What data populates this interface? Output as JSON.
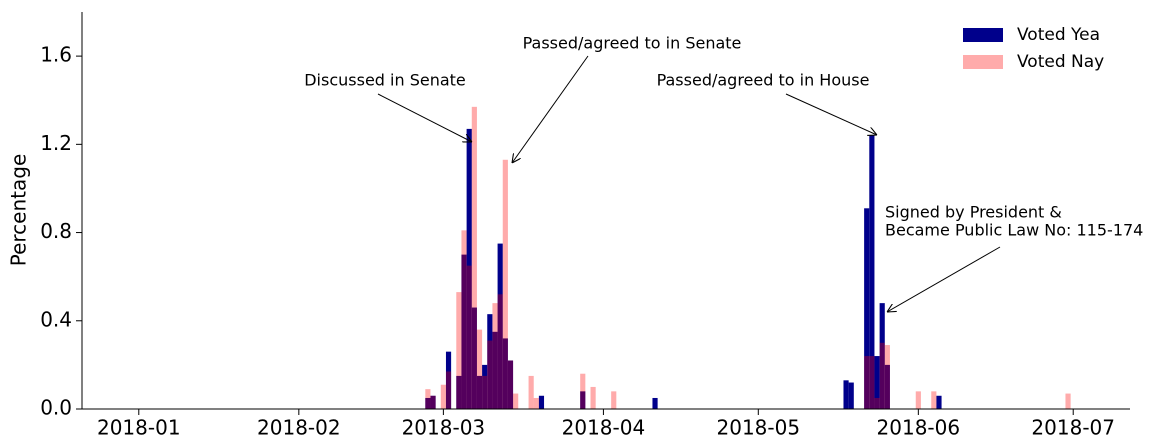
{
  "chart_data": {
    "type": "bar",
    "ylabel": "Percentage",
    "x": [
      "2018-02-26",
      "2018-02-27",
      "2018-03-01",
      "2018-03-02",
      "2018-03-04",
      "2018-03-05",
      "2018-03-06",
      "2018-03-07",
      "2018-03-08",
      "2018-03-09",
      "2018-03-10",
      "2018-03-11",
      "2018-03-12",
      "2018-03-13",
      "2018-03-14",
      "2018-03-15",
      "2018-03-18",
      "2018-03-19",
      "2018-03-20",
      "2018-03-28",
      "2018-03-30",
      "2018-04-03",
      "2018-04-11",
      "2018-05-18",
      "2018-05-19",
      "2018-05-22",
      "2018-05-23",
      "2018-05-24",
      "2018-05-25",
      "2018-05-26",
      "2018-06-01",
      "2018-06-04",
      "2018-06-05",
      "2018-06-30"
    ],
    "series": [
      {
        "name": "Voted Yea",
        "color": "#00008b",
        "alpha": 1,
        "values": [
          0.05,
          0.06,
          null,
          0.26,
          0.15,
          0.7,
          1.27,
          0.46,
          0.15,
          0.2,
          0.43,
          0.35,
          0.75,
          0.32,
          0.22,
          null,
          null,
          null,
          0.06,
          0.08,
          null,
          null,
          0.05,
          0.13,
          0.12,
          0.91,
          1.24,
          0.24,
          0.48,
          0.2,
          null,
          null,
          0.06,
          null
        ]
      },
      {
        "name": "Voted Nay",
        "color": "#ff0000",
        "alpha": 0.33,
        "values": [
          0.09,
          0.06,
          0.11,
          0.17,
          0.53,
          0.81,
          0.65,
          1.37,
          0.36,
          0.15,
          0.31,
          0.48,
          0.52,
          1.13,
          0.22,
          0.07,
          0.15,
          0.05,
          null,
          0.16,
          0.1,
          0.08,
          null,
          null,
          null,
          0.24,
          0.24,
          0.05,
          0.3,
          0.29,
          0.08,
          0.08,
          null,
          0.07
        ]
      }
    ],
    "xlim": [
      "2017-12-21",
      "2018-07-12"
    ],
    "xticks": [
      {
        "value": "2018-01-01",
        "label": "2018-01"
      },
      {
        "value": "2018-02-01",
        "label": "2018-02"
      },
      {
        "value": "2018-03-01",
        "label": "2018-03"
      },
      {
        "value": "2018-04-01",
        "label": "2018-04"
      },
      {
        "value": "2018-05-01",
        "label": "2018-05"
      },
      {
        "value": "2018-06-01",
        "label": "2018-06"
      },
      {
        "value": "2018-07-01",
        "label": "2018-07"
      }
    ],
    "ylim": [
      0,
      1.8
    ],
    "yticks": [
      {
        "value": 0,
        "label": "0.0"
      },
      0.4,
      0.8,
      1.2,
      1.6
    ],
    "legend": "upper right",
    "annotations": [
      {
        "lines": [
          "Discussed in Senate"
        ]
      },
      {
        "lines": [
          "Passed/agreed to in Senate"
        ]
      },
      {
        "lines": [
          "Passed/agreed to in House"
        ]
      },
      {
        "lines": [
          "Signed by President &",
          "Became Public Law No: 115-174"
        ]
      }
    ]
  }
}
